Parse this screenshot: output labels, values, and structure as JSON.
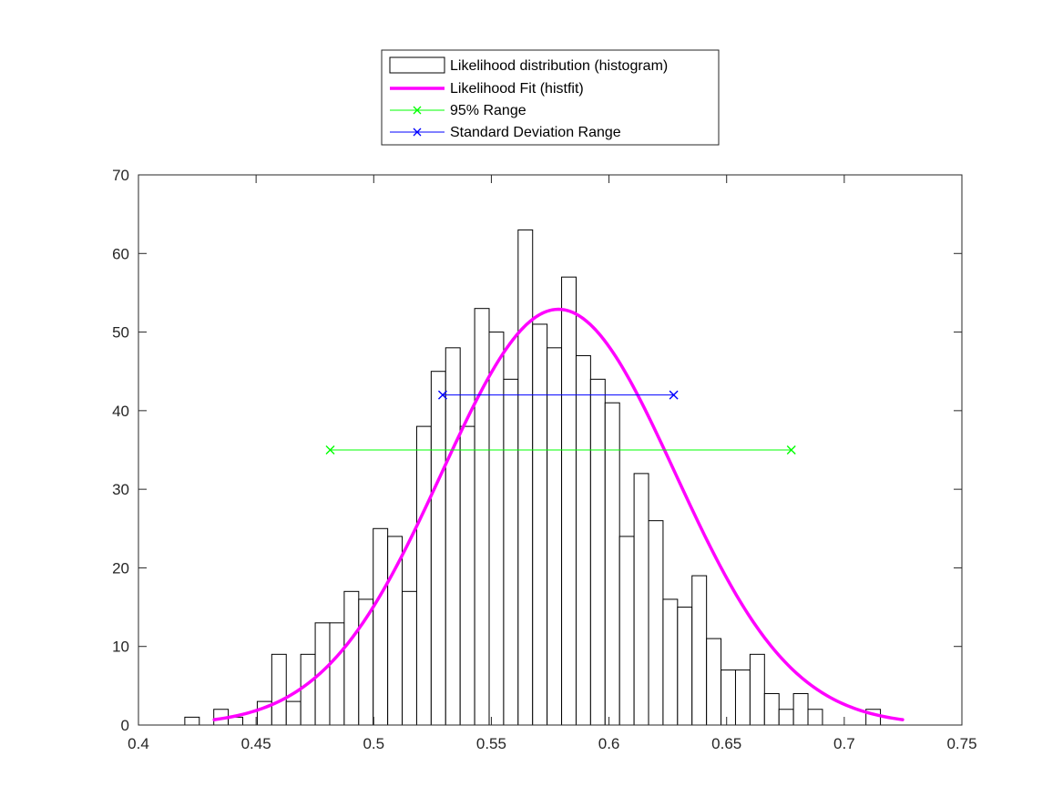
{
  "chart_data": {
    "type": "bar",
    "title": "",
    "xlabel": "",
    "ylabel": "",
    "xlim": [
      0.4,
      0.75
    ],
    "ylim": [
      0,
      70
    ],
    "xticks": [
      0.4,
      0.45,
      0.5,
      0.55,
      0.6,
      0.65,
      0.7,
      0.75
    ],
    "xtick_labels": [
      "0.4",
      "0.45",
      "0.5",
      "0.55",
      "0.6",
      "0.65",
      "0.7",
      "0.75"
    ],
    "yticks": [
      0,
      10,
      20,
      30,
      40,
      50,
      60,
      70
    ],
    "ytick_labels": [
      "0",
      "10",
      "20",
      "30",
      "40",
      "50",
      "60",
      "70"
    ],
    "grid": false,
    "legend_position": "outside-top-center",
    "series": [
      {
        "name": "Likelihood distribution (histogram)",
        "kind": "histogram",
        "bin_width": 0.00616,
        "bin_start": 0.4197,
        "counts": [
          1,
          0,
          2,
          1,
          0,
          3,
          9,
          3,
          9,
          13,
          13,
          17,
          16,
          25,
          24,
          17,
          38,
          45,
          48,
          38,
          53,
          50,
          44,
          63,
          51,
          48,
          57,
          47,
          44,
          41,
          24,
          32,
          26,
          16,
          15,
          19,
          11,
          7,
          7,
          9,
          4,
          2,
          4,
          2,
          0,
          0,
          0,
          2
        ],
        "face_color": "#ffffff",
        "edge_color": "#000000"
      },
      {
        "name": "Likelihood Fit (histfit)",
        "kind": "normal-fit",
        "mean": 0.5785,
        "sigma": 0.0496,
        "peak": 52.9,
        "x_range": [
          0.4322,
          0.7248
        ],
        "color": "#ff00ff"
      },
      {
        "name": "95% Range",
        "kind": "range",
        "x": [
          0.4815,
          0.6775
        ],
        "y": [
          35,
          35
        ],
        "marker": "x",
        "color": "#00ff00"
      },
      {
        "name": "Standard Deviation Range",
        "kind": "range",
        "x": [
          0.5293,
          0.6275
        ],
        "y": [
          42,
          42
        ],
        "marker": "x",
        "color": "#0000ff"
      }
    ]
  }
}
